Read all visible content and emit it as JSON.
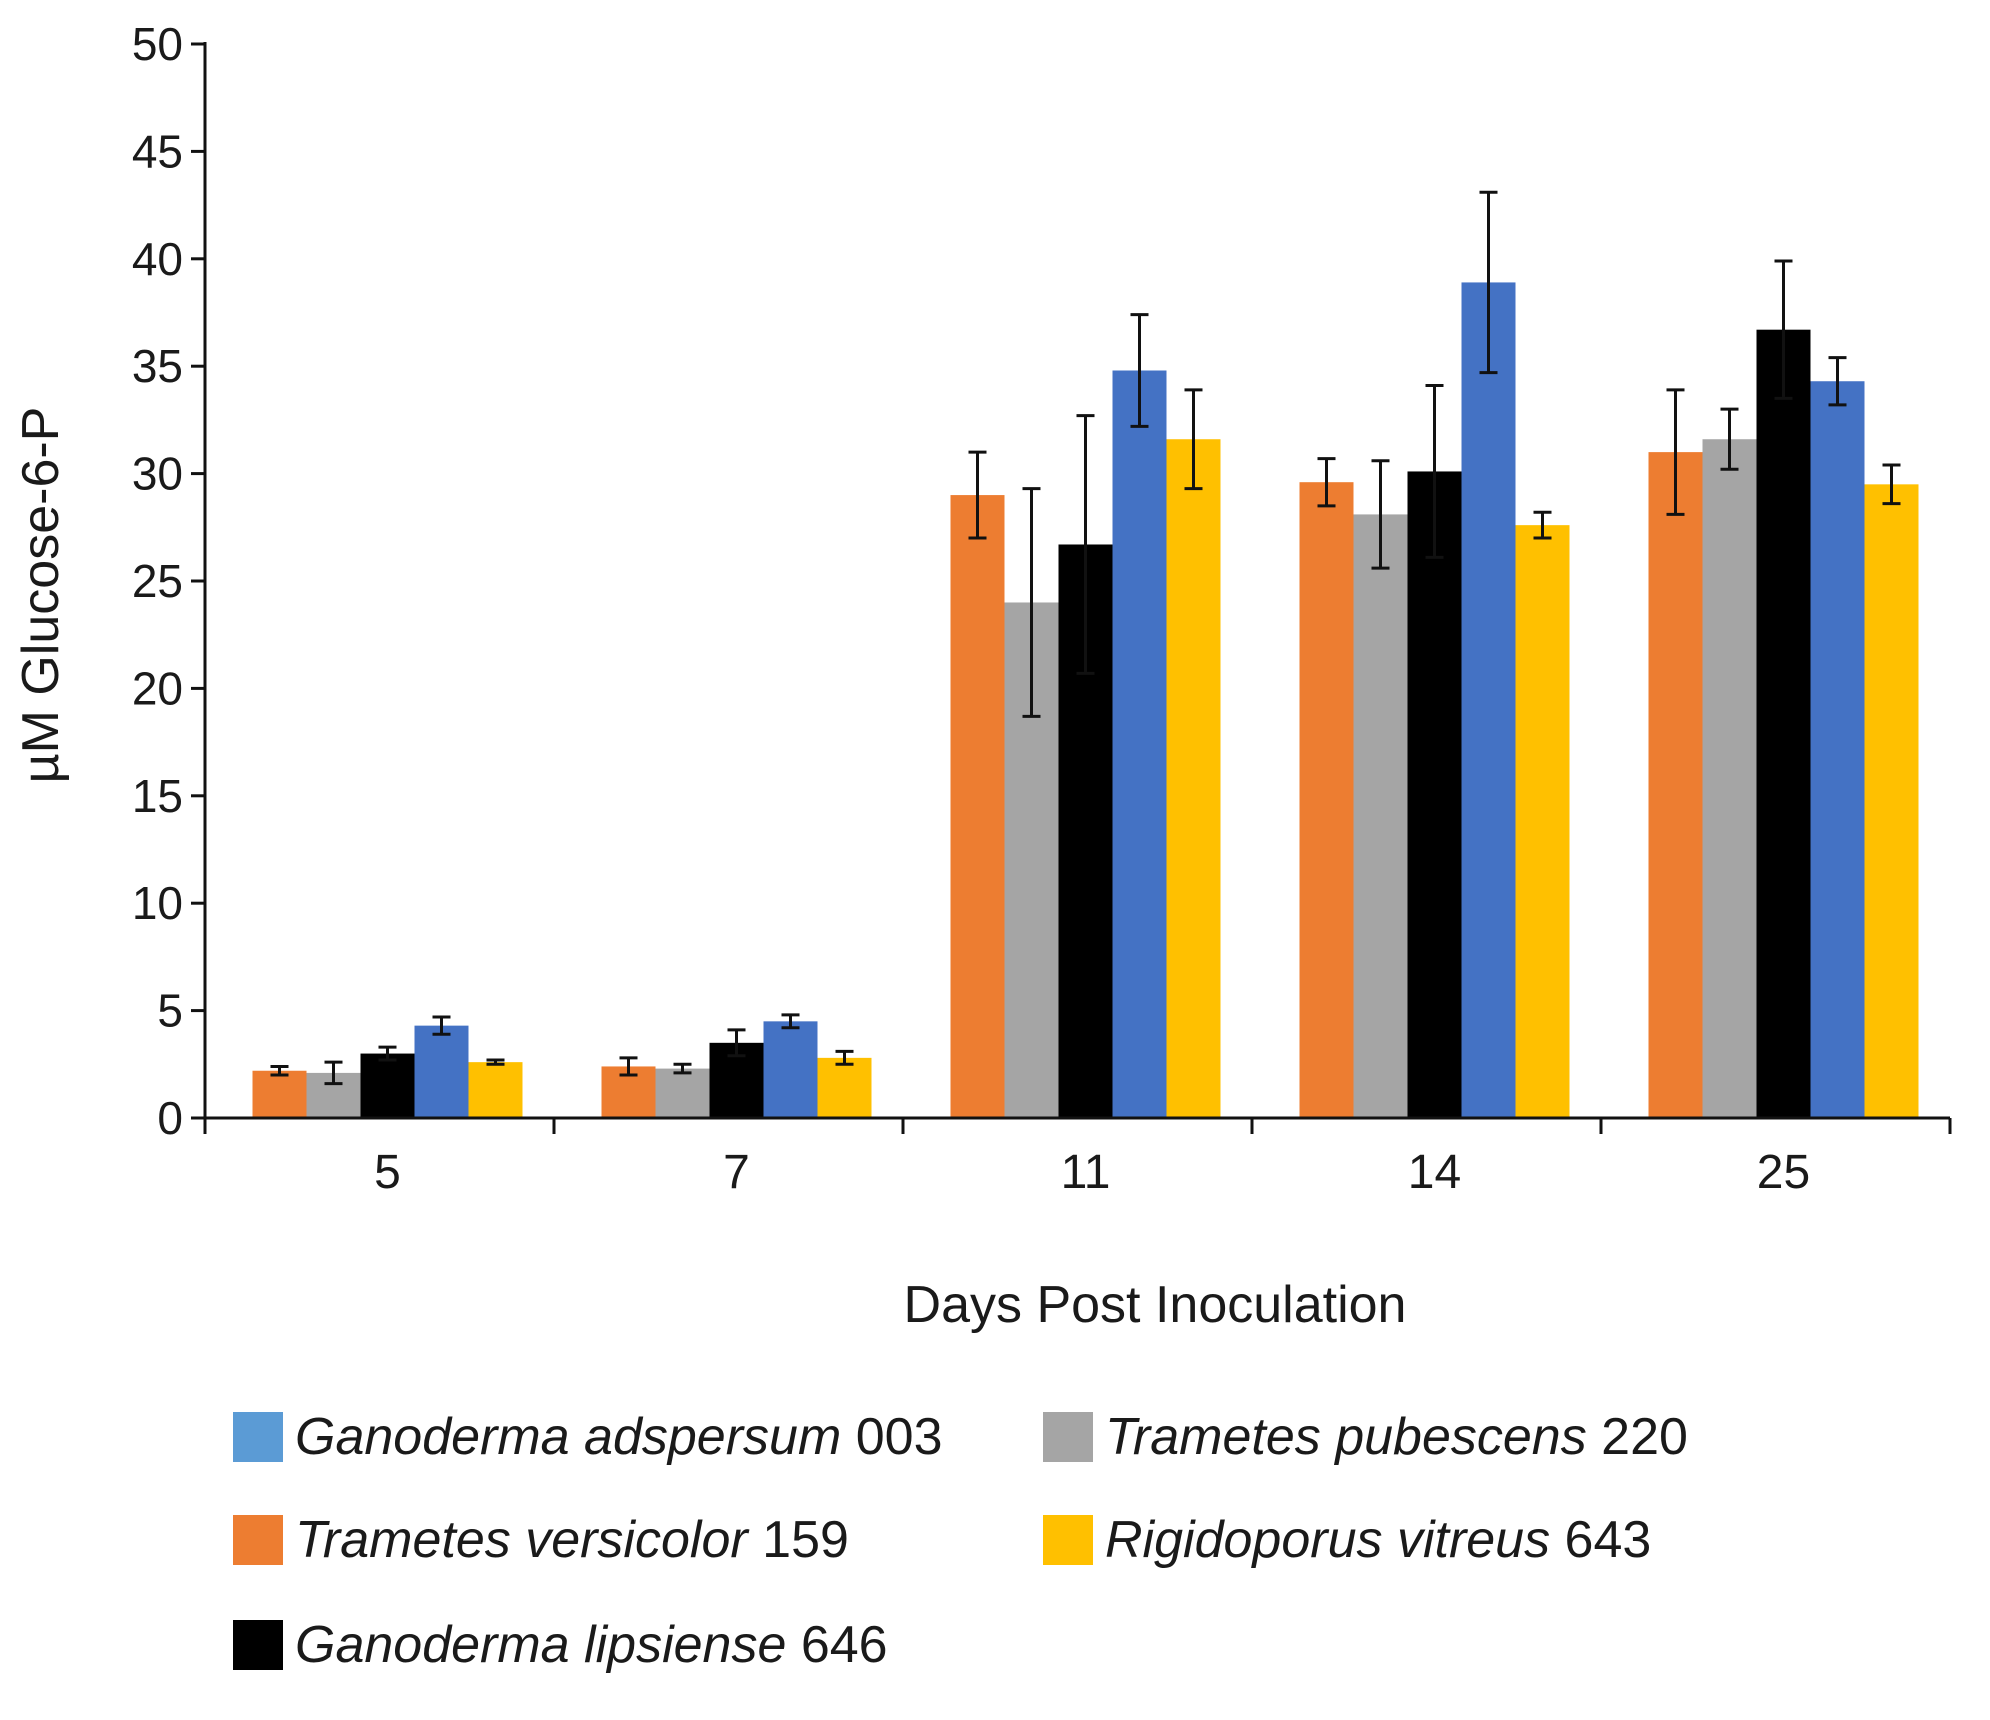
{
  "chart_data": {
    "type": "bar",
    "title": "",
    "xlabel": "Days Post Inoculation",
    "ylabel": "µM Glucose-6-P",
    "ylim": [
      0,
      50
    ],
    "yticks": [
      0,
      5,
      10,
      15,
      20,
      25,
      30,
      35,
      40,
      45,
      50
    ],
    "categories": [
      "5",
      "7",
      "11",
      "14",
      "25"
    ],
    "series": [
      {
        "name": "Trametes versicolor",
        "code": "159",
        "color": "#ED7D31",
        "values": [
          2.2,
          2.4,
          29.0,
          29.6,
          31.0
        ],
        "errors": [
          0.2,
          0.4,
          2.0,
          1.1,
          2.9
        ]
      },
      {
        "name": "Trametes pubescens",
        "code": "220",
        "color": "#A5A5A5",
        "values": [
          2.1,
          2.3,
          24.0,
          28.1,
          31.6
        ],
        "errors": [
          0.5,
          0.2,
          5.3,
          2.5,
          1.4
        ]
      },
      {
        "name": "Ganoderma lipsiense",
        "code": "646",
        "color": "#000000",
        "values": [
          3.0,
          3.5,
          26.7,
          30.1,
          36.7
        ],
        "errors": [
          0.3,
          0.6,
          6.0,
          4.0,
          3.2
        ]
      },
      {
        "name": "Ganoderma adspersum",
        "code": "003",
        "color": "#4472C4",
        "legend_color": "#5B9BD5",
        "values": [
          4.3,
          4.5,
          34.8,
          38.9,
          34.3
        ],
        "errors": [
          0.4,
          0.3,
          2.6,
          4.2,
          1.1
        ]
      },
      {
        "name": "Rigidoporus vitreus",
        "code": "643",
        "color": "#FFC000",
        "values": [
          2.6,
          2.8,
          31.6,
          27.6,
          29.5
        ],
        "errors": [
          0.1,
          0.3,
          2.3,
          0.6,
          0.9
        ]
      }
    ],
    "legend_order": [
      3,
      1,
      0,
      4,
      2
    ],
    "legend_position": "bottom",
    "grid": false
  }
}
